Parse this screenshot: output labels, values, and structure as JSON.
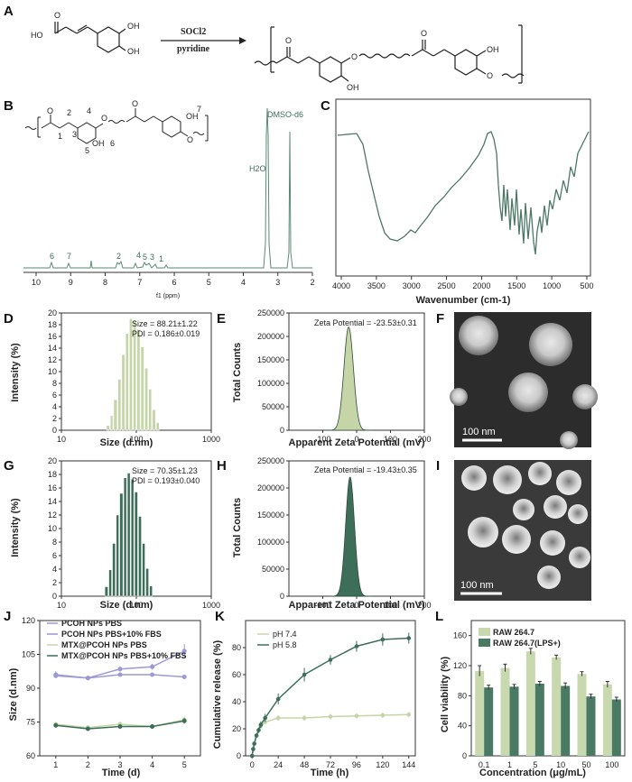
{
  "colors": {
    "light": "#c5d5a8",
    "dark": "#3d6e5a",
    "lavender": "#9d98d6",
    "ftir": "#4d7866",
    "bar_light": "#c8d9b0",
    "bar_dark": "#4a7a63"
  },
  "panel_A": {
    "label": "A",
    "reagent_top": "SOCl2",
    "reagent_bottom": "pyridine",
    "atom_labels": [
      "HO",
      "OH",
      "OH",
      "O",
      "O",
      "O",
      "O",
      "OH",
      "OH",
      "O"
    ]
  },
  "panel_B": {
    "label": "B",
    "xlabel": "f1 (ppm)",
    "xticks": [
      "10",
      "9",
      "8",
      "7",
      "6",
      "5",
      "4",
      "3",
      "2"
    ],
    "peak_labels": [
      "6",
      "7",
      "2",
      "4",
      "5",
      "3",
      "1"
    ],
    "h2o": "H2O",
    "dmso": "DMSO-d6",
    "struct_nums": [
      "2",
      "4",
      "1",
      "3",
      "5",
      "6",
      "7"
    ],
    "struct_atoms": [
      "O",
      "O",
      "O",
      "O",
      "OH",
      "OH",
      "O"
    ]
  },
  "panel_C": {
    "label": "C",
    "xlabel": "Wavenumber (cm-1)",
    "xticks": [
      "4000",
      "3500",
      "3000",
      "2500",
      "2000",
      "1500",
      "1000",
      "500"
    ]
  },
  "panel_D": {
    "label": "D",
    "chart_data": {
      "type": "bar",
      "title": "",
      "xlabel": "Size (d.nm)",
      "ylabel": "Intensity (%)",
      "xscale": "log",
      "xlim": [
        10,
        1000
      ],
      "ylim": [
        0,
        20
      ],
      "xticks": [
        "10",
        "100",
        "1000"
      ],
      "yticks": [
        "0",
        "2",
        "4",
        "6",
        "8",
        "10",
        "12",
        "14",
        "16",
        "18",
        "20"
      ],
      "annotation": [
        "Size = 88.21±1.22",
        "PDI = 0.186±0.019"
      ],
      "x": [
        40,
        45,
        50,
        57,
        64,
        72,
        81,
        91,
        102,
        115,
        130,
        146,
        164,
        185
      ],
      "values": [
        0.8,
        2.5,
        5.2,
        8.7,
        12.9,
        16.5,
        19,
        18.8,
        17.2,
        14.2,
        10.6,
        7,
        3.5,
        1.3
      ]
    }
  },
  "panel_E": {
    "label": "E",
    "chart_data": {
      "type": "area",
      "xlabel": "Apparent Zeta Potential (mV)",
      "ylabel": "Total Counts",
      "xlim": [
        -200,
        200
      ],
      "ylim": [
        0,
        250000
      ],
      "xticks": [
        "-100",
        "0",
        "100",
        "200"
      ],
      "yticks": [
        "0",
        "50000",
        "100000",
        "150000",
        "200000",
        "250000"
      ],
      "annotation": "Zeta Potential = -23.53±0.31",
      "peak_x": -23.5,
      "peak_y": 220000,
      "sigma": 14
    }
  },
  "panel_F": {
    "label": "F",
    "scale": "100 nm"
  },
  "panel_G": {
    "label": "G",
    "chart_data": {
      "type": "bar",
      "xlabel": "Size (d.nm)",
      "ylabel": "Intensity (%)",
      "xscale": "log",
      "xlim": [
        10,
        1000
      ],
      "ylim": [
        0,
        20
      ],
      "xticks": [
        "10",
        "100",
        "1000"
      ],
      "yticks": [
        "0",
        "2",
        "4",
        "6",
        "8",
        "10",
        "12",
        "14",
        "16",
        "18",
        "20"
      ],
      "annotation": [
        "Size = 70.35±1.23",
        "PDI = 0.193±0.040"
      ],
      "x": [
        38,
        43,
        48,
        54,
        60,
        68,
        76,
        85,
        95,
        107,
        120,
        134,
        150
      ],
      "values": [
        1.4,
        3.9,
        7.8,
        12,
        15.2,
        17.5,
        18.2,
        17.3,
        15.4,
        11.8,
        7.8,
        4.1,
        1.5
      ]
    }
  },
  "panel_H": {
    "label": "H",
    "chart_data": {
      "type": "area",
      "xlabel": "Apparent Zeta Potential (mV)",
      "ylabel": "Total Counts",
      "xlim": [
        -200,
        200
      ],
      "ylim": [
        0,
        250000
      ],
      "xticks": [
        "-100",
        "0",
        "100",
        "200"
      ],
      "yticks": [
        "0",
        "50000",
        "100000",
        "150000",
        "200000",
        "250000"
      ],
      "annotation": "Zeta Potential = -19.43±0.35",
      "peak_x": -19.4,
      "peak_y": 220000,
      "sigma": 13
    }
  },
  "panel_I": {
    "label": "I",
    "scale": "100 nm"
  },
  "panel_J": {
    "label": "J",
    "chart_data": {
      "type": "line",
      "xlabel": "Time (d)",
      "ylabel": "Size (d.nm)",
      "xlim": [
        0.5,
        5.5
      ],
      "ylim": [
        60,
        120
      ],
      "xticks": [
        "1",
        "2",
        "3",
        "4",
        "5"
      ],
      "yticks": [
        "60",
        "75",
        "90",
        "105",
        "120"
      ],
      "x": [
        1,
        2,
        3,
        4,
        5
      ],
      "series": [
        {
          "name": "PCOH NPs PBS",
          "values": [
            96,
            94.5,
            98.5,
            99.5,
            106.5
          ],
          "err": [
            1.5,
            1,
            1.2,
            1.3,
            3
          ]
        },
        {
          "name": "PCOH NPs PBS+10% FBS",
          "values": [
            95.5,
            94.5,
            96,
            96,
            95
          ],
          "err": [
            1,
            0.8,
            1,
            0.8,
            1
          ]
        },
        {
          "name": "MTX@PCOH NPs PBS",
          "values": [
            74,
            72.5,
            74,
            73,
            76
          ],
          "err": [
            1,
            1,
            1.3,
            1,
            1.5
          ]
        },
        {
          "name": "MTX@PCOH NPs PBS+10% FBS",
          "values": [
            73.5,
            72,
            73,
            73,
            75.5
          ],
          "err": [
            1,
            0.8,
            1,
            1,
            1.2
          ]
        }
      ]
    }
  },
  "panel_K": {
    "label": "K",
    "chart_data": {
      "type": "line",
      "xlabel": "Time (h)",
      "ylabel": "Cumulative release (%)",
      "xlim": [
        -6,
        150
      ],
      "ylim": [
        0,
        100
      ],
      "xticks": [
        "0",
        "24",
        "48",
        "72",
        "96",
        "120",
        "144"
      ],
      "yticks": [
        "0",
        "20",
        "40",
        "60",
        "80"
      ],
      "x": [
        0,
        1,
        2,
        4,
        6,
        8,
        12,
        24,
        48,
        72,
        96,
        120,
        144
      ],
      "series": [
        {
          "name": "pH 7.4",
          "values": [
            0,
            5,
            9,
            15,
            19,
            22,
            25,
            28,
            28,
            29,
            29.5,
            30,
            30.5
          ],
          "err": [
            0.5,
            0.8,
            1,
            1.2,
            1.3,
            1.5,
            1.5,
            2,
            2,
            2,
            2,
            2,
            2
          ]
        },
        {
          "name": "pH 5.8",
          "values": [
            0,
            5,
            9,
            15,
            19,
            23,
            28,
            42,
            60,
            71,
            81,
            86,
            87
          ],
          "err": [
            0.5,
            1,
            1.2,
            1.5,
            2,
            2.5,
            3,
            4,
            5,
            3.5,
            4,
            4.5,
            4
          ]
        }
      ]
    }
  },
  "panel_L": {
    "label": "L",
    "chart_data": {
      "type": "bar",
      "xlabel": "Concentration (μg/mL)",
      "ylabel": "Cell viability (%)",
      "ylim": [
        0,
        180
      ],
      "yticks": [
        "0",
        "40",
        "80",
        "120",
        "160"
      ],
      "categories": [
        "0.1",
        "1",
        "5",
        "10",
        "50",
        "100"
      ],
      "series": [
        {
          "name": "RAW 264.7",
          "values": [
            113,
            117,
            139,
            131,
            109,
            95
          ],
          "err": [
            7,
            5,
            4,
            3,
            3,
            4
          ]
        },
        {
          "name": "RAW 264.7(LPS+)",
          "values": [
            91,
            92,
            96,
            93,
            79,
            75
          ],
          "err": [
            3,
            3,
            3,
            4,
            3,
            3
          ]
        }
      ]
    }
  }
}
